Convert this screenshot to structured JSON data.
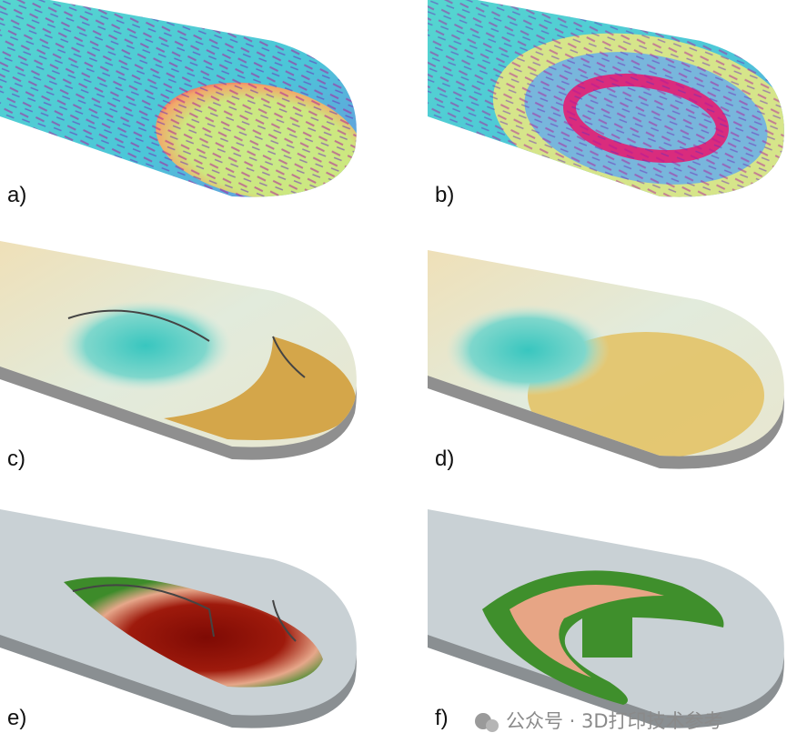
{
  "panels": [
    {
      "label": "a)"
    },
    {
      "label": "b)"
    },
    {
      "label": "c)"
    },
    {
      "label": "d)"
    },
    {
      "label": "e)"
    },
    {
      "label": "f)"
    }
  ],
  "watermark": "公众号 · 3D打印技术参考"
}
